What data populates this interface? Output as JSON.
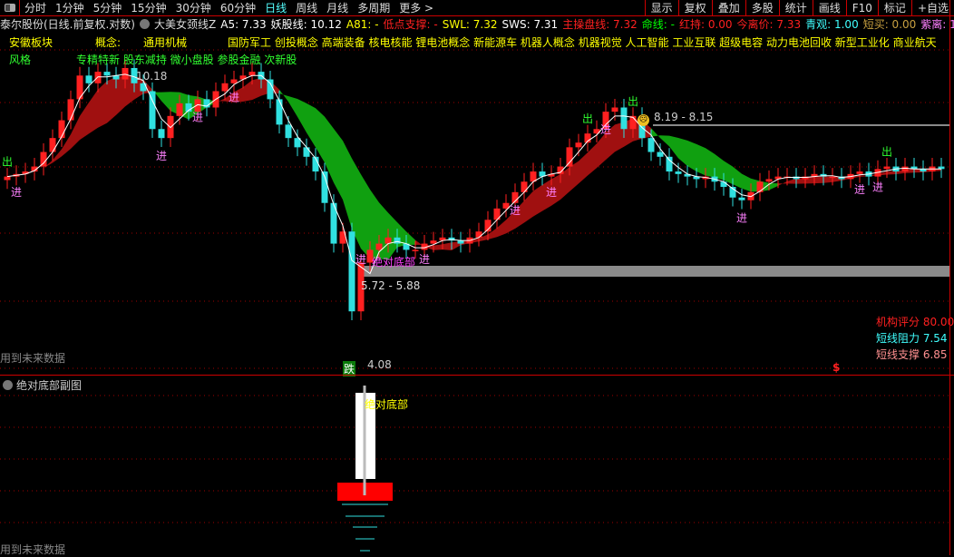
{
  "toolbar": {
    "periods": [
      "分时",
      "1分钟",
      "5分钟",
      "15分钟",
      "30分钟",
      "60分钟",
      "日线",
      "周线",
      "月线",
      "多周期",
      "更多 >"
    ],
    "active_period": "日线",
    "right_buttons": [
      "显示",
      "复权",
      "叠加",
      "多股",
      "统计",
      "画线",
      "F10",
      "标记",
      "+自选"
    ]
  },
  "info": {
    "stock_title": "泰尔股份(日线.前复权.对数)",
    "indicator_name": "大美女颈线Z",
    "items": [
      {
        "text": "A5: 7.33",
        "color": "#ffffff"
      },
      {
        "text": "妖股线: 10.12",
        "color": "#ffffff"
      },
      {
        "text": "A81: -",
        "color": "#ffff00"
      },
      {
        "text": "低点支撑: -",
        "color": "#ff2020"
      },
      {
        "text": "SWL: 7.32",
        "color": "#ffff00"
      },
      {
        "text": "SWS: 7.31",
        "color": "#ffffff"
      },
      {
        "text": "主操盘线: 7.32",
        "color": "#ff2020"
      },
      {
        "text": "命线: -",
        "color": "#00ff00"
      },
      {
        "text": "红持: 0.00",
        "color": "#ff2020"
      },
      {
        "text": "今离价: 7.33",
        "color": "#ff2020"
      },
      {
        "text": "青观: 1.00",
        "color": "#40ffff"
      },
      {
        "text": "短买: 0.00",
        "color": "#c8a040"
      },
      {
        "text": "紫离: 1.00",
        "color": "#ff80ff"
      }
    ]
  },
  "concepts": {
    "sector_label": "安徽板块",
    "concept_label": "概念:",
    "concept_first": "通用机械",
    "concepts_list": "国防军工 创投概念 高端装备 核电核能 锂电池概念 新能源车 机器人概念 机器视觉 人工智能 工业互联 超级电容 动力电池回收 新型工业化 商业航天",
    "style_label": "风格",
    "style_list": "专精特新 股东减持 微小盘股 参股金融 次新股"
  },
  "main_chart": {
    "high_label": "10.18",
    "low_label": "4.08",
    "support_zone_label": "5.72 - 5.88",
    "resistance_zone_label": "8.19 - 8.15",
    "future_data_note": "用到未来数据",
    "drop_badge": "跌",
    "absolute_bottom_tag": "绝对底部",
    "right_stats": [
      {
        "label": "机构评分",
        "value": "80.00",
        "color": "#ff2020"
      },
      {
        "label": "短线阻力",
        "value": "7.54",
        "color": "#40ffff"
      },
      {
        "label": "短线支撑",
        "value": "6.85",
        "color": "#ff9090"
      }
    ],
    "s_marker": "$"
  },
  "chart_data": {
    "type": "candlestick",
    "scale": "log",
    "ylim": [
      4.0,
      9.6
    ],
    "grid": true,
    "closes": [
      6.9,
      6.95,
      7.0,
      7.1,
      7.4,
      7.7,
      8.1,
      8.6,
      9.2,
      9.0,
      9.3,
      9.2,
      9.1,
      9.4,
      9.0,
      8.8,
      7.9,
      7.7,
      8.2,
      8.5,
      8.3,
      8.6,
      8.4,
      8.8,
      9.0,
      9.1,
      9.2,
      9.3,
      9.1,
      8.6,
      8.0,
      7.7,
      7.5,
      7.3,
      7.0,
      6.4,
      5.7,
      5.9,
      4.7,
      5.4,
      5.6,
      5.7,
      5.8,
      5.7,
      5.6,
      5.6,
      5.7,
      5.75,
      5.8,
      5.75,
      5.7,
      5.8,
      5.9,
      6.1,
      6.3,
      6.4,
      6.6,
      6.8,
      7.0,
      6.9,
      6.95,
      7.1,
      7.5,
      7.6,
      7.8,
      7.9,
      8.3,
      8.4,
      7.9,
      8.2,
      7.7,
      7.4,
      7.3,
      7.0,
      6.95,
      6.9,
      6.85,
      6.9,
      6.8,
      6.7,
      6.5,
      6.45,
      6.6,
      6.8,
      6.85,
      6.9,
      6.9,
      6.85,
      6.9,
      6.95,
      6.9,
      6.9,
      6.85,
      6.95,
      7.0,
      6.9,
      7.05,
      7.1,
      7.0,
      7.1,
      7.05,
      7.0,
      7.1,
      7.05
    ],
    "signals": [
      {
        "index": 1,
        "label": "进"
      },
      {
        "index": 0,
        "label": "出"
      },
      {
        "index": 17,
        "label": "进"
      },
      {
        "index": 21,
        "label": "进"
      },
      {
        "index": 25,
        "label": "进"
      },
      {
        "index": 39,
        "label": "进"
      },
      {
        "index": 46,
        "label": "进"
      },
      {
        "index": 56,
        "label": "进"
      },
      {
        "index": 60,
        "label": "进"
      },
      {
        "index": 66,
        "label": "进"
      },
      {
        "index": 64,
        "label": "出"
      },
      {
        "index": 69,
        "label": "出"
      },
      {
        "index": 81,
        "label": "进"
      },
      {
        "index": 94,
        "label": "进"
      },
      {
        "index": 96,
        "label": "进"
      },
      {
        "index": 97,
        "label": "出"
      }
    ]
  },
  "sub_chart": {
    "title": "绝对底部副图",
    "bar_label": "绝对底部",
    "future_data_note": "用到未来数据"
  },
  "colors": {
    "up": "#ff2020",
    "down": "#30e0e0",
    "grid": "#a00000",
    "band_up": "#a01010",
    "band_down": "#10a010"
  }
}
